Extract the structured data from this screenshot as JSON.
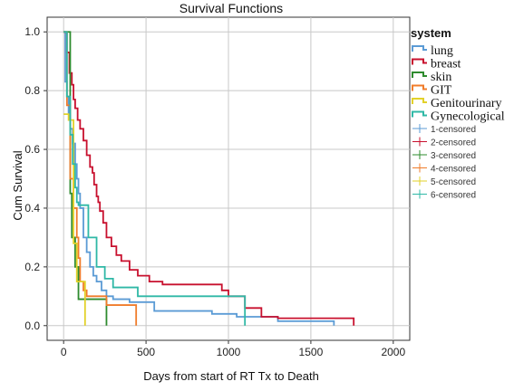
{
  "chart_data": {
    "type": "line",
    "title": "Survival Functions",
    "xlabel": "Days from start of RT Tx to Death",
    "ylabel": "Cum Survival",
    "xlim": [
      -100,
      2100
    ],
    "ylim": [
      -0.05,
      1.05
    ],
    "xticks": [
      0,
      500,
      1000,
      1500,
      2000
    ],
    "yticks": [
      0.0,
      0.2,
      0.4,
      0.6,
      0.8,
      1.0
    ],
    "ytick_labels": [
      "0.0",
      "0.2",
      "0.4",
      "0.6",
      "0.8",
      "1.0"
    ],
    "grid": true,
    "legend_title": "system",
    "legend_position": "right",
    "series": [
      {
        "name": "lung",
        "color": "#5b9bd5",
        "points": [
          [
            0,
            1.0
          ],
          [
            10,
            0.83
          ],
          [
            20,
            0.78
          ],
          [
            30,
            0.72
          ],
          [
            40,
            0.67
          ],
          [
            55,
            0.62
          ],
          [
            70,
            0.55
          ],
          [
            80,
            0.5
          ],
          [
            90,
            0.45
          ],
          [
            100,
            0.4
          ],
          [
            120,
            0.3
          ],
          [
            140,
            0.25
          ],
          [
            160,
            0.2
          ],
          [
            180,
            0.17
          ],
          [
            200,
            0.15
          ],
          [
            230,
            0.12
          ],
          [
            260,
            0.1
          ],
          [
            300,
            0.09
          ],
          [
            400,
            0.08
          ],
          [
            550,
            0.05
          ],
          [
            900,
            0.04
          ],
          [
            1050,
            0.03
          ],
          [
            1300,
            0.015
          ],
          [
            1640,
            0.015
          ]
        ],
        "end": 1640,
        "end_drop": 0.0
      },
      {
        "name": "breast",
        "color": "#c8102e",
        "points": [
          [
            0,
            1.0
          ],
          [
            20,
            0.93
          ],
          [
            35,
            0.86
          ],
          [
            50,
            0.82
          ],
          [
            60,
            0.77
          ],
          [
            70,
            0.74
          ],
          [
            85,
            0.7
          ],
          [
            100,
            0.67
          ],
          [
            120,
            0.63
          ],
          [
            140,
            0.58
          ],
          [
            160,
            0.54
          ],
          [
            175,
            0.52
          ],
          [
            185,
            0.48
          ],
          [
            200,
            0.44
          ],
          [
            210,
            0.42
          ],
          [
            220,
            0.39
          ],
          [
            240,
            0.35
          ],
          [
            260,
            0.3
          ],
          [
            290,
            0.27
          ],
          [
            320,
            0.24
          ],
          [
            350,
            0.22
          ],
          [
            400,
            0.19
          ],
          [
            450,
            0.17
          ],
          [
            520,
            0.15
          ],
          [
            600,
            0.14
          ],
          [
            960,
            0.12
          ],
          [
            1000,
            0.1
          ],
          [
            1100,
            0.06
          ],
          [
            1200,
            0.03
          ],
          [
            1300,
            0.025
          ],
          [
            1760,
            0.025
          ]
        ],
        "end": 1760,
        "end_drop": 0.0
      },
      {
        "name": "skin",
        "color": "#2e8b2e",
        "points": [
          [
            0,
            1.0
          ],
          [
            40,
            0.45
          ],
          [
            50,
            0.3
          ],
          [
            70,
            0.2
          ],
          [
            90,
            0.09
          ],
          [
            260,
            0.09
          ]
        ],
        "end": 260,
        "end_drop": 0.0
      },
      {
        "name": "GIT",
        "color": "#f07c2b",
        "points": [
          [
            0,
            1.0
          ],
          [
            20,
            0.75
          ],
          [
            40,
            0.5
          ],
          [
            60,
            0.4
          ],
          [
            80,
            0.3
          ],
          [
            90,
            0.23
          ],
          [
            100,
            0.15
          ],
          [
            120,
            0.12
          ],
          [
            140,
            0.1
          ],
          [
            160,
            0.1
          ],
          [
            260,
            0.07
          ],
          [
            440,
            0.07
          ]
        ],
        "end": 440,
        "end_drop": 0.0
      },
      {
        "name": "Genitourinary",
        "color": "#e2d12a",
        "points": [
          [
            0,
            0.72
          ],
          [
            30,
            0.7
          ],
          [
            60,
            0.28
          ],
          [
            80,
            0.15
          ],
          [
            130,
            0.15
          ]
        ],
        "end": 130,
        "end_drop": 0.0
      },
      {
        "name": "Gynecological",
        "color": "#2fb8a6",
        "points": [
          [
            0,
            1.0
          ],
          [
            20,
            0.78
          ],
          [
            40,
            0.65
          ],
          [
            55,
            0.55
          ],
          [
            70,
            0.47
          ],
          [
            80,
            0.42
          ],
          [
            90,
            0.41
          ],
          [
            150,
            0.3
          ],
          [
            200,
            0.2
          ],
          [
            250,
            0.16
          ],
          [
            300,
            0.13
          ],
          [
            450,
            0.1
          ],
          [
            1100,
            0.1
          ]
        ],
        "end": 1100,
        "end_drop": 0.0
      }
    ],
    "censored_labels": [
      "1-censored",
      "2-censored",
      "3-censored",
      "4-censored",
      "5-censored",
      "6-censored"
    ]
  }
}
